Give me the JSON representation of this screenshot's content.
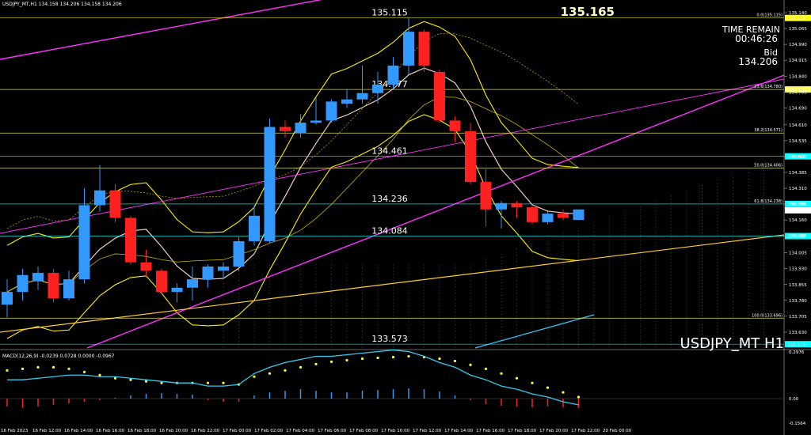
{
  "header": {
    "symbol_line": "USDJPY_MT,H1  134.158 134.206 134.158 134.206"
  },
  "info": {
    "time_remain_label": "TIME REMAIN",
    "time_remain": "00:46:26",
    "bid_label": "Bid",
    "bid": "134.206",
    "top_price": "135.165",
    "symbol_tf": "USDJPY_MT H1"
  },
  "macd": {
    "label": "MACD(12,26,9) -0.0239 0.0728 0.0000 -0.0967",
    "ticks": [
      "0.2976",
      "0.00",
      "-0.1564"
    ],
    "tick_values": [
      0.2976,
      0.0,
      -0.1564
    ],
    "ylim": [
      -0.1564,
      0.2976
    ],
    "histogram": [
      -0.05,
      -0.06,
      -0.05,
      -0.04,
      -0.03,
      -0.02,
      -0.01,
      0.005,
      0.02,
      0.03,
      0.035,
      0.03,
      0.025,
      -0.01,
      -0.02,
      -0.02,
      0.02,
      0.04,
      0.05,
      0.06,
      0.05,
      0.04,
      0.04,
      0.05,
      0.055,
      0.06,
      0.065,
      0.06,
      0.045,
      0.02,
      -0.01,
      -0.035,
      -0.045,
      -0.05,
      -0.055,
      -0.05,
      -0.055,
      -0.06
    ],
    "signal": [
      0.18,
      0.19,
      0.2,
      0.2,
      0.19,
      0.17,
      0.15,
      0.13,
      0.12,
      0.11,
      0.1,
      0.1,
      0.1,
      0.1,
      0.1,
      0.09,
      0.14,
      0.16,
      0.18,
      0.2,
      0.22,
      0.235,
      0.245,
      0.255,
      0.26,
      0.265,
      0.27,
      0.265,
      0.255,
      0.24,
      0.215,
      0.19,
      0.16,
      0.13,
      0.1,
      0.07,
      0.04,
      0.01
    ],
    "macd_line": [
      0.12,
      0.12,
      0.13,
      0.14,
      0.15,
      0.15,
      0.14,
      0.14,
      0.13,
      0.12,
      0.11,
      0.1,
      0.1,
      0.08,
      0.08,
      0.09,
      0.16,
      0.2,
      0.23,
      0.25,
      0.27,
      0.27,
      0.28,
      0.29,
      0.3,
      0.31,
      0.3,
      0.27,
      0.23,
      0.2,
      0.15,
      0.12,
      0.08,
      0.06,
      0.03,
      0.01,
      -0.02,
      -0.04
    ]
  },
  "chart_data": {
    "type": "candlestick",
    "title": "USDJPY_MT H1",
    "ylim": [
      133.555,
      135.17
    ],
    "price_ticks": [
      "135.140",
      "135.065",
      "134.990",
      "134.915",
      "134.840",
      "134.765",
      "134.690",
      "134.610",
      "134.535",
      "134.460",
      "134.385",
      "134.310",
      "134.235",
      "134.160",
      "134.085",
      "134.005",
      "133.930",
      "133.855",
      "133.780",
      "133.705",
      "133.630"
    ],
    "price_tick_values": [
      135.14,
      135.065,
      134.99,
      134.915,
      134.84,
      134.765,
      134.69,
      134.61,
      134.535,
      134.46,
      134.385,
      134.31,
      134.235,
      134.16,
      134.085,
      134.005,
      133.93,
      133.855,
      133.78,
      133.705,
      133.63
    ],
    "time_labels": [
      "16 Feb 2023",
      "16 Feb 12:00",
      "16 Feb 14:00",
      "16 Feb 16:00",
      "16 Feb 18:00",
      "16 Feb 20:00",
      "16 Feb 22:00",
      "17 Feb 00:00",
      "17 Feb 02:00",
      "17 Feb 04:00",
      "17 Feb 06:00",
      "17 Feb 08:00",
      "17 Feb 10:00",
      "17 Feb 12:00",
      "17 Feb 14:00",
      "17 Feb 16:00",
      "17 Feb 18:00",
      "17 Feb 20:00",
      "17 Feb 22:00",
      "20 Feb 00:00"
    ],
    "candles": [
      {
        "o": 133.76,
        "h": 133.88,
        "l": 133.7,
        "c": 133.82
      },
      {
        "o": 133.82,
        "h": 133.93,
        "l": 133.78,
        "c": 133.9
      },
      {
        "o": 133.87,
        "h": 133.94,
        "l": 133.83,
        "c": 133.91
      },
      {
        "o": 133.91,
        "h": 133.93,
        "l": 133.77,
        "c": 133.79
      },
      {
        "o": 133.79,
        "h": 133.92,
        "l": 133.78,
        "c": 133.88
      },
      {
        "o": 133.88,
        "h": 134.31,
        "l": 133.86,
        "c": 134.23
      },
      {
        "o": 134.23,
        "h": 134.42,
        "l": 134.2,
        "c": 134.3
      },
      {
        "o": 134.3,
        "h": 134.33,
        "l": 134.15,
        "c": 134.17
      },
      {
        "o": 134.17,
        "h": 134.18,
        "l": 133.95,
        "c": 133.96
      },
      {
        "o": 133.96,
        "h": 134.02,
        "l": 133.89,
        "c": 133.92
      },
      {
        "o": 133.92,
        "h": 133.93,
        "l": 133.81,
        "c": 133.82
      },
      {
        "o": 133.82,
        "h": 133.86,
        "l": 133.77,
        "c": 133.84
      },
      {
        "o": 133.84,
        "h": 133.94,
        "l": 133.78,
        "c": 133.88
      },
      {
        "o": 133.88,
        "h": 133.95,
        "l": 133.84,
        "c": 133.94
      },
      {
        "o": 133.92,
        "h": 133.96,
        "l": 133.88,
        "c": 133.94
      },
      {
        "o": 133.94,
        "h": 134.08,
        "l": 133.92,
        "c": 134.06
      },
      {
        "o": 134.06,
        "h": 134.23,
        "l": 134.04,
        "c": 134.18
      },
      {
        "o": 134.06,
        "h": 134.64,
        "l": 134.05,
        "c": 134.6
      },
      {
        "o": 134.6,
        "h": 134.63,
        "l": 134.55,
        "c": 134.58
      },
      {
        "o": 134.57,
        "h": 134.66,
        "l": 134.55,
        "c": 134.62
      },
      {
        "o": 134.62,
        "h": 134.74,
        "l": 134.61,
        "c": 134.63
      },
      {
        "o": 134.63,
        "h": 134.73,
        "l": 134.62,
        "c": 134.72
      },
      {
        "o": 134.71,
        "h": 134.78,
        "l": 134.69,
        "c": 134.73
      },
      {
        "o": 134.73,
        "h": 134.89,
        "l": 134.71,
        "c": 134.76
      },
      {
        "o": 134.76,
        "h": 134.86,
        "l": 134.71,
        "c": 134.8
      },
      {
        "o": 134.8,
        "h": 134.93,
        "l": 134.78,
        "c": 134.89
      },
      {
        "o": 134.89,
        "h": 135.12,
        "l": 134.85,
        "c": 135.05
      },
      {
        "o": 135.05,
        "h": 135.06,
        "l": 134.86,
        "c": 134.89
      },
      {
        "o": 134.86,
        "h": 134.87,
        "l": 134.62,
        "c": 134.63
      },
      {
        "o": 134.63,
        "h": 134.65,
        "l": 134.53,
        "c": 134.58
      },
      {
        "o": 134.58,
        "h": 134.62,
        "l": 134.33,
        "c": 134.34
      },
      {
        "o": 134.34,
        "h": 134.4,
        "l": 134.13,
        "c": 134.21
      },
      {
        "o": 134.21,
        "h": 134.25,
        "l": 134.12,
        "c": 134.24
      },
      {
        "o": 134.24,
        "h": 134.25,
        "l": 134.17,
        "c": 134.22
      },
      {
        "o": 134.22,
        "h": 134.23,
        "l": 134.14,
        "c": 134.15
      },
      {
        "o": 134.15,
        "h": 134.2,
        "l": 134.14,
        "c": 134.19
      },
      {
        "o": 134.19,
        "h": 134.21,
        "l": 134.16,
        "c": 134.17
      },
      {
        "o": 134.16,
        "h": 134.21,
        "l": 134.16,
        "c": 134.21
      }
    ],
    "levels": [
      {
        "price": 135.115,
        "label": "135.115",
        "tag": "135.115",
        "color": "#ffff00",
        "fib": "0.0(135.115)"
      },
      {
        "price": 134.777,
        "label": "134.777",
        "tag": "134.777",
        "color": "#ffff66",
        "fib": "23.6(134.780)"
      },
      {
        "price": 134.571,
        "label": "",
        "tag": "",
        "color": "#ffff66",
        "fib": "38.2(134.571)"
      },
      {
        "price": 134.461,
        "label": "134.461",
        "tag": "134.461",
        "color": "#00ffff",
        "fib": ""
      },
      {
        "price": 134.406,
        "label": "",
        "tag": "",
        "color": "#ffff66",
        "fib": "50.0(134.406)"
      },
      {
        "price": 134.236,
        "label": "134.236",
        "tag": "134.236",
        "color": "#00ffff",
        "fib": "61.8(134.238)"
      },
      {
        "price": 134.084,
        "label": "134.084",
        "tag": "134.084",
        "color": "#00ffff",
        "fib": ""
      },
      {
        "price": 133.696,
        "label": "",
        "tag": "",
        "color": "#ffff66",
        "fib": "100.0(133.696)"
      },
      {
        "price": 133.573,
        "label": "133.573",
        "tag": "133.573",
        "color": "#00ffff",
        "fib": ""
      }
    ],
    "bid_tag": "134.206",
    "colors": {
      "bull": "#3399ff",
      "bear": "#ff2020",
      "fib": "#ffff66",
      "level": "#00ffff",
      "trend": "#ff33ff",
      "band": "#ffff00"
    }
  }
}
